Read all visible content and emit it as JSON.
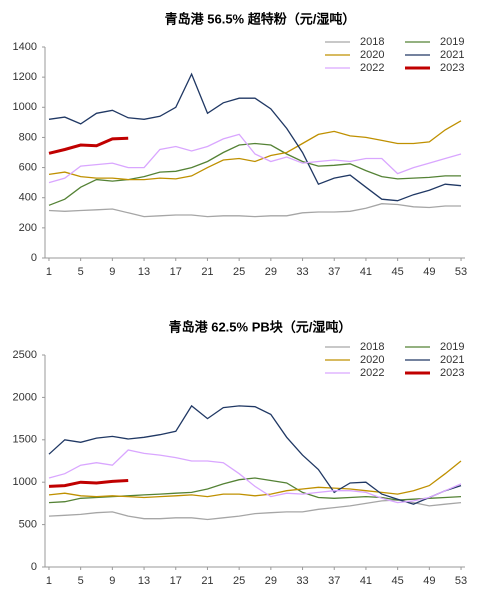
{
  "chart_data": [
    {
      "type": "line",
      "title": "青岛港 56.5% 超特粉（元/湿吨）",
      "x": [
        1,
        3,
        5,
        7,
        9,
        11,
        13,
        15,
        17,
        19,
        21,
        23,
        25,
        27,
        29,
        31,
        33,
        35,
        37,
        39,
        41,
        43,
        45,
        47,
        49,
        51,
        53
      ],
      "xlim": [
        0.5,
        53.5
      ],
      "xticks": [
        1,
        5,
        9,
        13,
        17,
        21,
        25,
        29,
        33,
        37,
        41,
        45,
        49,
        53
      ],
      "ylim": [
        0,
        1400
      ],
      "yticks": [
        0,
        200,
        400,
        600,
        800,
        1000,
        1200,
        1400
      ],
      "series": [
        {
          "name": "2018",
          "color": "#a6a6a6",
          "values": [
            315,
            310,
            315,
            320,
            325,
            300,
            275,
            280,
            285,
            285,
            275,
            280,
            280,
            275,
            280,
            280,
            300,
            305,
            305,
            310,
            330,
            360,
            355,
            340,
            335,
            345,
            345
          ]
        },
        {
          "name": "2019",
          "color": "#548235",
          "values": [
            350,
            390,
            470,
            520,
            510,
            520,
            540,
            570,
            575,
            600,
            640,
            700,
            750,
            760,
            750,
            690,
            640,
            610,
            615,
            625,
            580,
            540,
            525,
            530,
            535,
            545,
            545
          ]
        },
        {
          "name": "2020",
          "color": "#bf9000",
          "values": [
            555,
            570,
            540,
            530,
            530,
            520,
            520,
            530,
            525,
            545,
            600,
            650,
            660,
            640,
            680,
            700,
            760,
            820,
            840,
            810,
            800,
            780,
            760,
            760,
            770,
            850,
            910
          ]
        },
        {
          "name": "2021",
          "color": "#203864",
          "values": [
            920,
            935,
            890,
            960,
            980,
            930,
            920,
            940,
            1000,
            1220,
            960,
            1030,
            1060,
            1060,
            990,
            860,
            700,
            490,
            530,
            550,
            470,
            390,
            380,
            420,
            450,
            490,
            480
          ]
        },
        {
          "name": "2022",
          "color": "#d9a6ff",
          "values": [
            500,
            530,
            610,
            620,
            630,
            600,
            600,
            720,
            740,
            710,
            740,
            790,
            820,
            690,
            640,
            670,
            630,
            640,
            650,
            640,
            660,
            660,
            560,
            600,
            630,
            660,
            690
          ]
        },
        {
          "name": "2023",
          "color": "#c00000",
          "values": [
            695,
            720,
            750,
            745,
            790,
            795,
            null,
            null,
            null,
            null,
            null,
            null,
            null,
            null,
            null,
            null,
            null,
            null,
            null,
            null,
            null,
            null,
            null,
            null,
            null,
            null,
            null
          ]
        }
      ]
    },
    {
      "type": "line",
      "title": "青岛港 62.5% PB块（元/湿吨）",
      "x": [
        1,
        3,
        5,
        7,
        9,
        11,
        13,
        15,
        17,
        19,
        21,
        23,
        25,
        27,
        29,
        31,
        33,
        35,
        37,
        39,
        41,
        43,
        45,
        47,
        49,
        51,
        53
      ],
      "xlim": [
        0.5,
        53.5
      ],
      "xticks": [
        1,
        5,
        9,
        13,
        17,
        21,
        25,
        29,
        33,
        37,
        41,
        45,
        49,
        53
      ],
      "ylim": [
        0,
        2500
      ],
      "yticks": [
        0,
        500,
        1000,
        1500,
        2000,
        2500
      ],
      "series": [
        {
          "name": "2018",
          "color": "#a6a6a6",
          "values": [
            600,
            610,
            620,
            640,
            650,
            600,
            570,
            570,
            580,
            580,
            560,
            580,
            600,
            630,
            640,
            650,
            650,
            680,
            700,
            720,
            750,
            780,
            790,
            760,
            720,
            740,
            760
          ]
        },
        {
          "name": "2019",
          "color": "#548235",
          "values": [
            760,
            770,
            810,
            820,
            830,
            840,
            850,
            860,
            870,
            880,
            920,
            980,
            1030,
            1050,
            1020,
            990,
            880,
            820,
            810,
            820,
            830,
            820,
            790,
            800,
            810,
            820,
            830
          ]
        },
        {
          "name": "2020",
          "color": "#bf9000",
          "values": [
            850,
            870,
            840,
            830,
            840,
            830,
            820,
            830,
            840,
            850,
            830,
            860,
            860,
            840,
            860,
            900,
            920,
            940,
            930,
            920,
            900,
            880,
            860,
            900,
            960,
            1100,
            1250
          ]
        },
        {
          "name": "2021",
          "color": "#203864",
          "values": [
            1330,
            1500,
            1470,
            1520,
            1540,
            1510,
            1530,
            1560,
            1600,
            1900,
            1750,
            1880,
            1900,
            1890,
            1800,
            1530,
            1320,
            1150,
            880,
            990,
            1000,
            860,
            800,
            740,
            820,
            900,
            960
          ]
        },
        {
          "name": "2022",
          "color": "#d9a6ff",
          "values": [
            1050,
            1100,
            1200,
            1230,
            1200,
            1380,
            1340,
            1320,
            1290,
            1250,
            1250,
            1230,
            1100,
            950,
            830,
            870,
            860,
            880,
            900,
            900,
            880,
            810,
            760,
            780,
            820,
            900,
            980
          ]
        },
        {
          "name": "2023",
          "color": "#c00000",
          "values": [
            950,
            960,
            1000,
            990,
            1010,
            1020,
            null,
            null,
            null,
            null,
            null,
            null,
            null,
            null,
            null,
            null,
            null,
            null,
            null,
            null,
            null,
            null,
            null,
            null,
            null,
            null,
            null
          ]
        }
      ]
    }
  ]
}
